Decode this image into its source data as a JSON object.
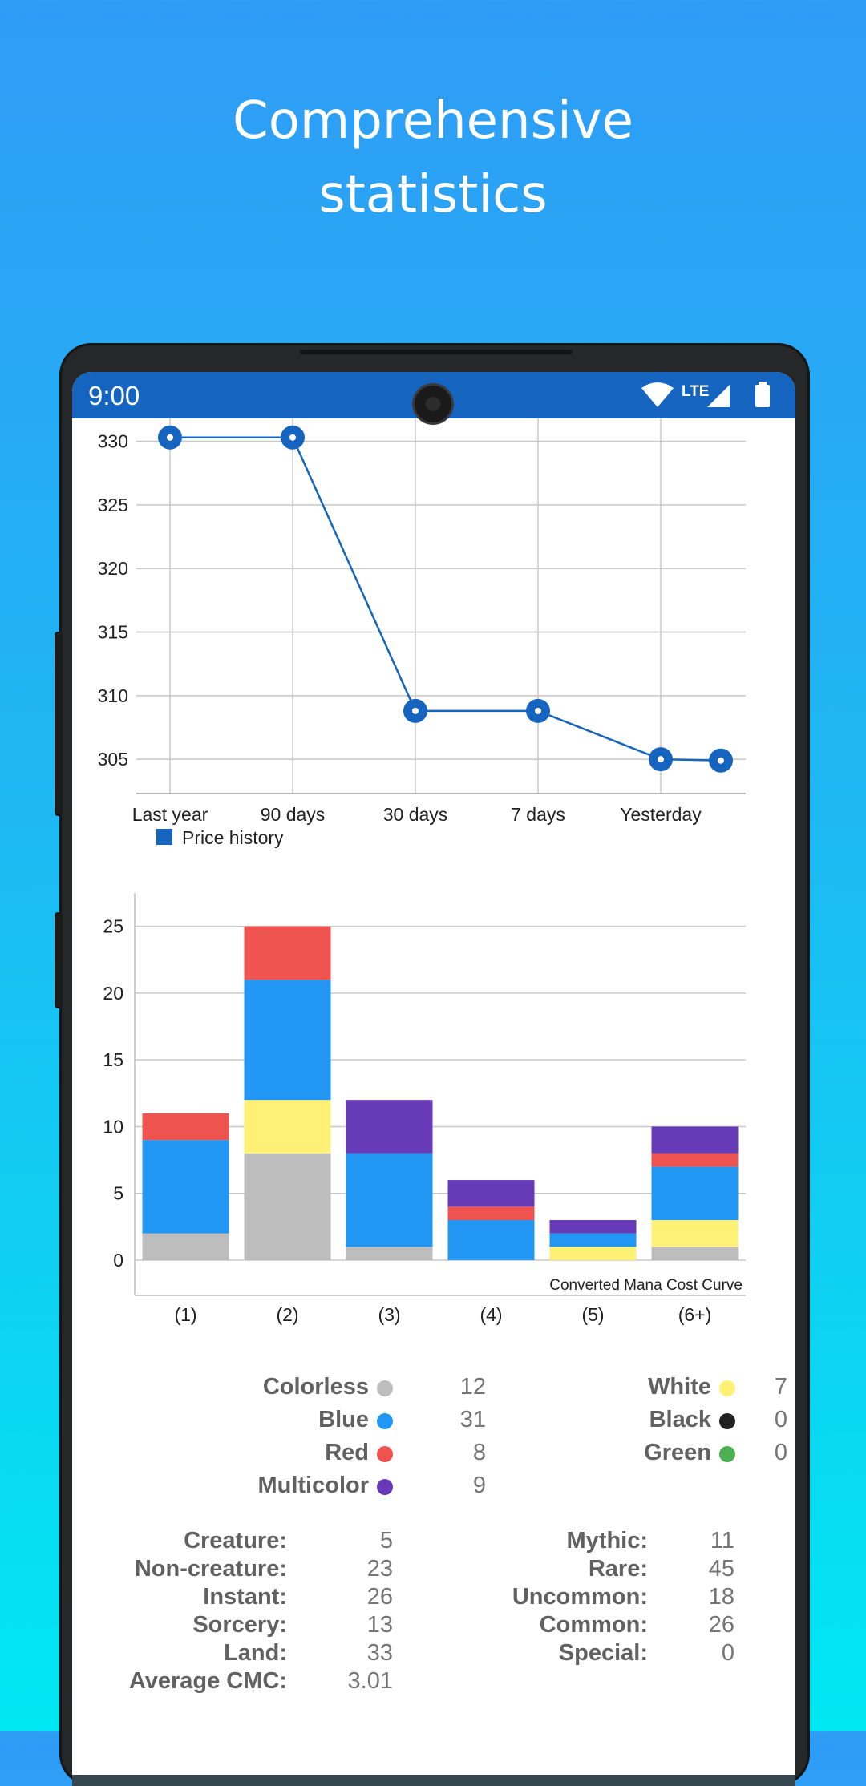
{
  "headline": {
    "line1": "Comprehensive",
    "line2": "statistics"
  },
  "status_bar": {
    "time": "9:00",
    "network": "LTE"
  },
  "price_chart": {
    "chart_data": {
      "type": "line",
      "x": [
        "Last year",
        "90 days",
        "30 days",
        "7 days",
        "Yesterday",
        ""
      ],
      "series": [
        {
          "name": "Price history",
          "values": [
            330.3,
            330.3,
            308.8,
            308.8,
            305.0,
            304.9
          ]
        }
      ],
      "y_ticks": [
        305,
        310,
        315,
        320,
        325,
        330
      ],
      "ylim": [
        302.3,
        331.8
      ],
      "grid": true,
      "legend": "bottom-left",
      "color": "#1565c0"
    }
  },
  "mana_chart": {
    "chart_data": {
      "type": "bar",
      "stacked": true,
      "categories": [
        "(1)",
        "(2)",
        "(3)",
        "(4)",
        "(5)",
        "(6+)"
      ],
      "series": [
        {
          "name": "Colorless",
          "color": "#bdbdbd",
          "values": [
            2,
            8,
            1,
            0,
            0,
            1
          ]
        },
        {
          "name": "White",
          "color": "#fff176",
          "values": [
            0,
            4,
            0,
            0,
            1,
            2
          ]
        },
        {
          "name": "Blue",
          "color": "#2196f3",
          "values": [
            7,
            9,
            7,
            3,
            1,
            4
          ]
        },
        {
          "name": "Red",
          "color": "#ef5350",
          "values": [
            2,
            4,
            0,
            1,
            0,
            1
          ]
        },
        {
          "name": "Multicolor",
          "color": "#673ab7",
          "values": [
            0,
            0,
            4,
            2,
            1,
            2
          ]
        }
      ],
      "y_ticks": [
        0,
        5,
        10,
        15,
        20,
        25
      ],
      "ylim": [
        0,
        27.5
      ],
      "grid": true,
      "annotation": "Converted Mana Cost Curve"
    }
  },
  "color_stats": {
    "left": [
      {
        "label": "Colorless",
        "color": "#bdbdbd",
        "value": "12"
      },
      {
        "label": "Blue",
        "color": "#2196f3",
        "value": "31"
      },
      {
        "label": "Red",
        "color": "#ef5350",
        "value": "8"
      },
      {
        "label": "Multicolor",
        "color": "#673ab7",
        "value": "9"
      }
    ],
    "right": [
      {
        "label": "White",
        "color": "#fff176",
        "value": "7"
      },
      {
        "label": "Black",
        "color": "#212121",
        "value": "0"
      },
      {
        "label": "Green",
        "color": "#4caf50",
        "value": "0"
      }
    ]
  },
  "type_stats": {
    "left": [
      {
        "label": "Creature:",
        "value": "5"
      },
      {
        "label": "Non-creature:",
        "value": "23"
      },
      {
        "label": "Instant:",
        "value": "26"
      },
      {
        "label": "Sorcery:",
        "value": "13"
      },
      {
        "label": "Land:",
        "value": "33"
      },
      {
        "label": "Average CMC:",
        "value": "3.01"
      }
    ],
    "right": [
      {
        "label": "Mythic:",
        "value": "11"
      },
      {
        "label": "Rare:",
        "value": "45"
      },
      {
        "label": "Uncommon:",
        "value": "18"
      },
      {
        "label": "Common:",
        "value": "26"
      },
      {
        "label": "Special:",
        "value": "0"
      }
    ]
  }
}
